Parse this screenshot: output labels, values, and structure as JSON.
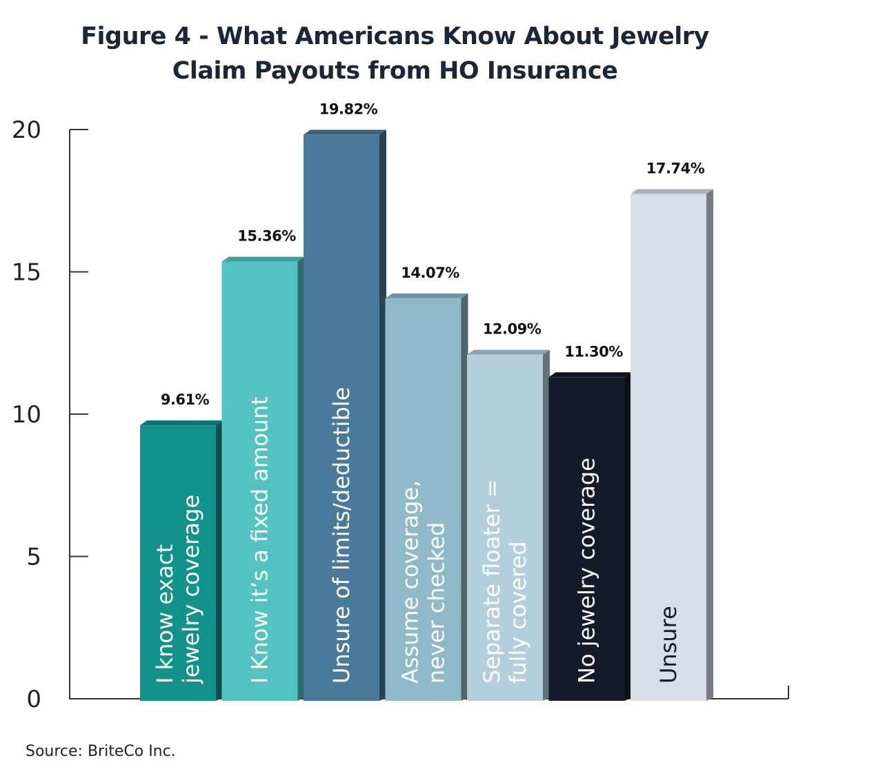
{
  "chart_data": {
    "type": "bar",
    "title_lines": [
      "Figure 4 - What Americans Know About Jewelry",
      "Claim Payouts from HO Insurance"
    ],
    "categories": [
      [
        "I know exact",
        "jewelry coverage"
      ],
      [
        "I Know it’s a fixed amount"
      ],
      [
        "Unsure of limits/deductible"
      ],
      [
        "Assume coverage,",
        "never checked"
      ],
      [
        "Separate floater =",
        "fully covered"
      ],
      [
        "No jewelry coverage"
      ],
      [
        "Unsure"
      ]
    ],
    "values": [
      9.61,
      15.36,
      19.82,
      14.07,
      12.09,
      11.3,
      17.74
    ],
    "data_labels": [
      "9.61%",
      "15.36%",
      "19.82%",
      "14.07%",
      "12.09%",
      "11.30%",
      "17.74%"
    ],
    "colors": [
      "#13918b",
      "#52c3c0",
      "#4a7a99",
      "#8fb8c8",
      "#b3cfdb",
      "#151a2b",
      "#d8dfe8"
    ],
    "label_colors": [
      "#ffffff",
      "#ffffff",
      "#ffffff",
      "#ffffff",
      "#ffffff",
      "#ffffff",
      "#151a2b"
    ],
    "ylim": [
      0,
      20
    ],
    "yticks": [
      "0",
      "5",
      "10",
      "15",
      "20"
    ],
    "xlabel": "",
    "ylabel": "",
    "grid": false,
    "style": "3d-bars"
  },
  "source": "Source: BriteCo Inc."
}
